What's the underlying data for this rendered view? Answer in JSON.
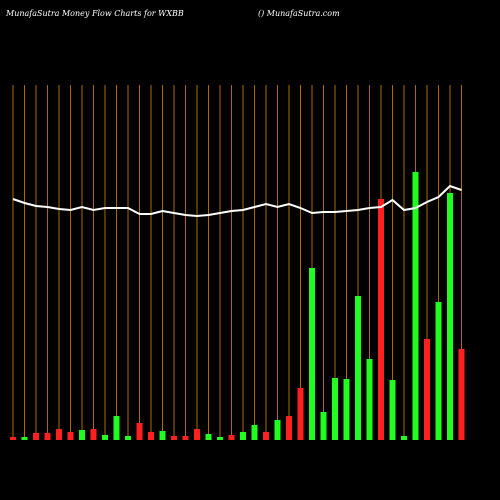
{
  "chart_data": {
    "type": "bar",
    "title": "MunafaSutra  Money Flow  Charts for WXBB",
    "subtitle": "() MunafaSutra.com",
    "categories": [
      null,
      null,
      null,
      null,
      null,
      null,
      null,
      null,
      null,
      null,
      null,
      null,
      null,
      null,
      null,
      null,
      null,
      null,
      null,
      null,
      null,
      null,
      null,
      null,
      null,
      null,
      null,
      null,
      null,
      null,
      null,
      null,
      null,
      null,
      null,
      null,
      null,
      null,
      null,
      null
    ],
    "series": [
      {
        "kind": "bar",
        "values": [
          3,
          3,
          7,
          7,
          11,
          8,
          10,
          11,
          5,
          24,
          4,
          17,
          8,
          9,
          4,
          4,
          11,
          6,
          3,
          5,
          8,
          15,
          8,
          20,
          24,
          52,
          172,
          28,
          62,
          61,
          144,
          81,
          241,
          60,
          4,
          268,
          101,
          138,
          247,
          91
        ],
        "colors": [
          "#ff2020",
          "#20ff20",
          "#ff2020",
          "#ff2020",
          "#ff2020",
          "#ff2020",
          "#20ff20",
          "#ff2020",
          "#20ff20",
          "#20ff20",
          "#20ff20",
          "#ff2020",
          "#ff2020",
          "#20ff20",
          "#ff2020",
          "#ff2020",
          "#ff2020",
          "#20ff20",
          "#20ff20",
          "#ff2020",
          "#20ff20",
          "#20ff20",
          "#ff2020",
          "#20ff20",
          "#ff2020",
          "#ff2020",
          "#20ff20",
          "#20ff20",
          "#20ff20",
          "#20ff20",
          "#20ff20",
          "#20ff20",
          "#ff2020",
          "#20ff20",
          "#20ff20",
          "#20ff20",
          "#ff2020",
          "#20ff20",
          "#20ff20",
          "#ff2020"
        ]
      },
      {
        "kind": "line",
        "color": "#ffffff",
        "values": [
          241,
          237,
          234,
          233,
          231,
          230,
          233,
          230,
          232,
          232,
          232,
          226,
          226,
          229,
          227,
          225,
          224,
          225,
          227,
          229,
          230,
          233,
          236,
          233,
          236,
          232,
          227,
          228,
          228,
          229,
          230,
          232,
          233,
          240,
          230,
          232,
          238,
          243,
          254,
          250
        ]
      }
    ],
    "ylim": [
      0,
      355
    ],
    "grid_color": "#b06a00"
  }
}
